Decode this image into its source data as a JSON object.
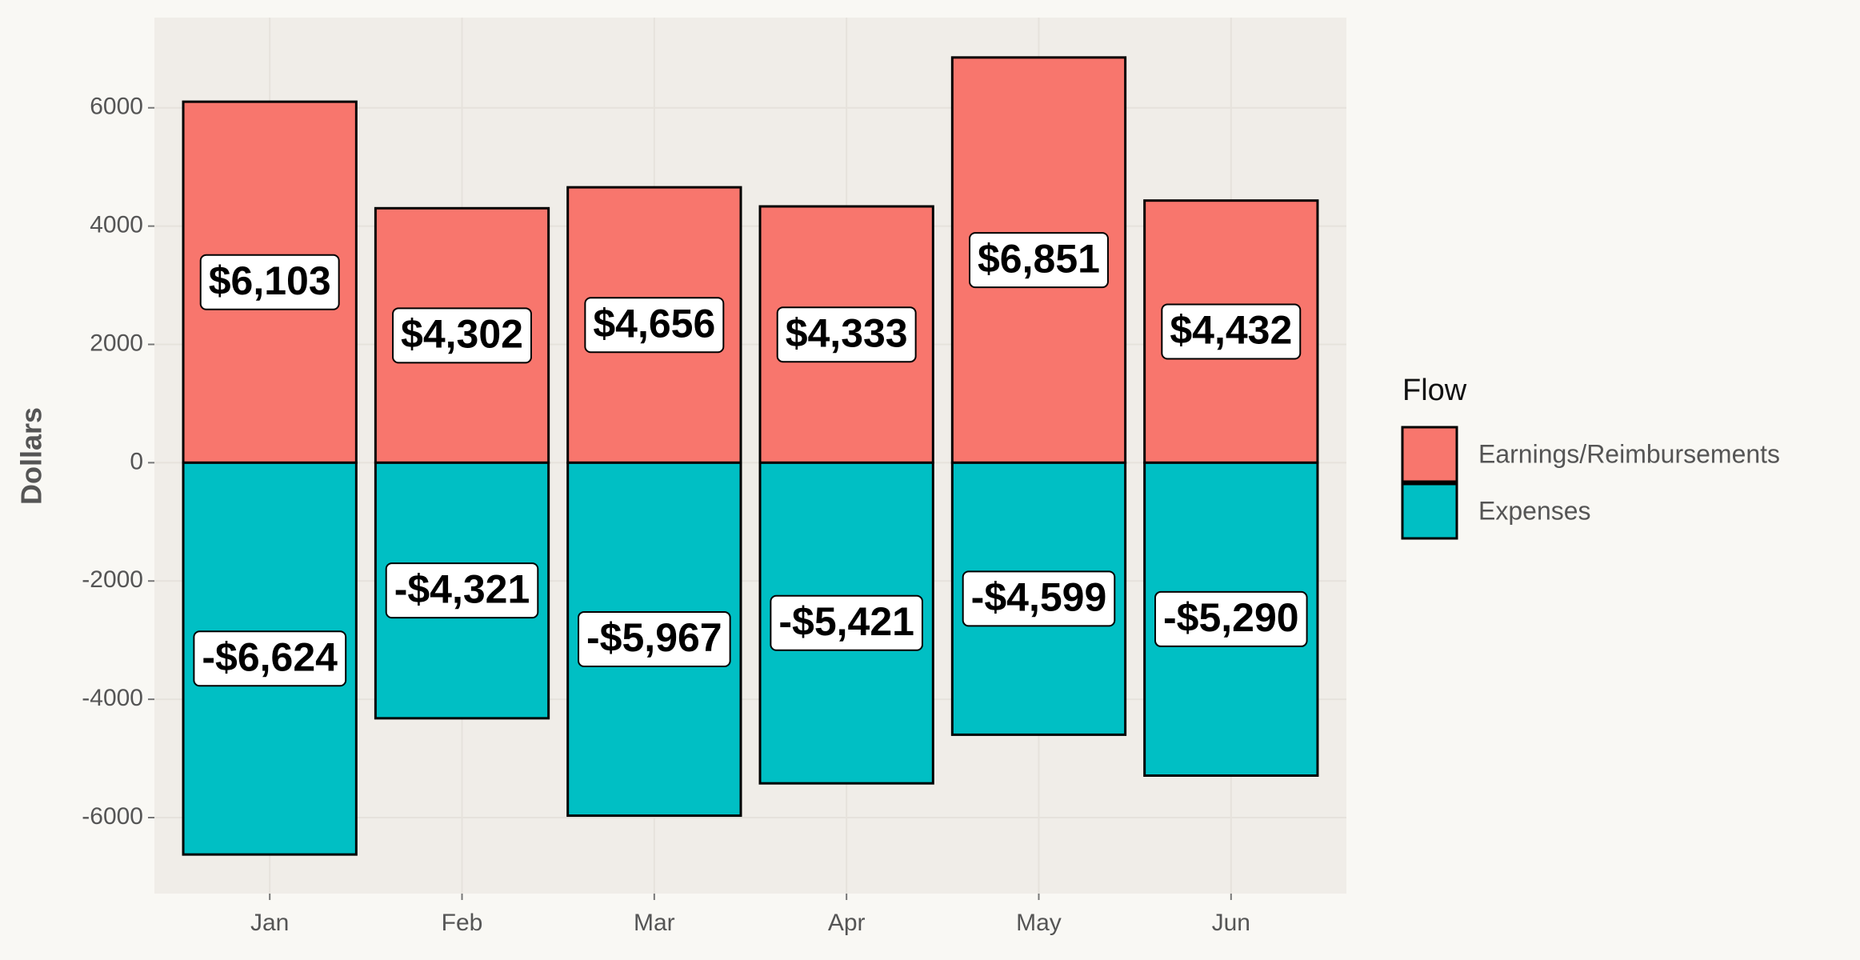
{
  "chart_data": {
    "type": "bar",
    "stacked": true,
    "y_label": "Dollars",
    "legend_title": "Flow",
    "legend_position": "right",
    "categories": [
      "Jan",
      "Feb",
      "Mar",
      "Apr",
      "May",
      "Jun"
    ],
    "series": [
      {
        "name": "Earnings/Reimbursements",
        "color": "#f8766d",
        "values": [
          6103,
          4302,
          4656,
          4333,
          6851,
          4432
        ],
        "value_labels": [
          "$6,103",
          "$4,302",
          "$4,656",
          "$4,333",
          "$6,851",
          "$4,432"
        ]
      },
      {
        "name": "Expenses",
        "color": "#00bfc4",
        "values": [
          -6624,
          -4321,
          -5967,
          -5421,
          -4599,
          -5290
        ],
        "value_labels": [
          "-$6,624",
          "-$4,321",
          "-$5,967",
          "-$5,421",
          "-$4,599",
          "-$5,290"
        ]
      }
    ],
    "ylim": [
      -7285,
      7525
    ],
    "yticks": [
      -6000,
      -4000,
      -2000,
      0,
      2000,
      4000,
      6000
    ],
    "grid": true
  }
}
